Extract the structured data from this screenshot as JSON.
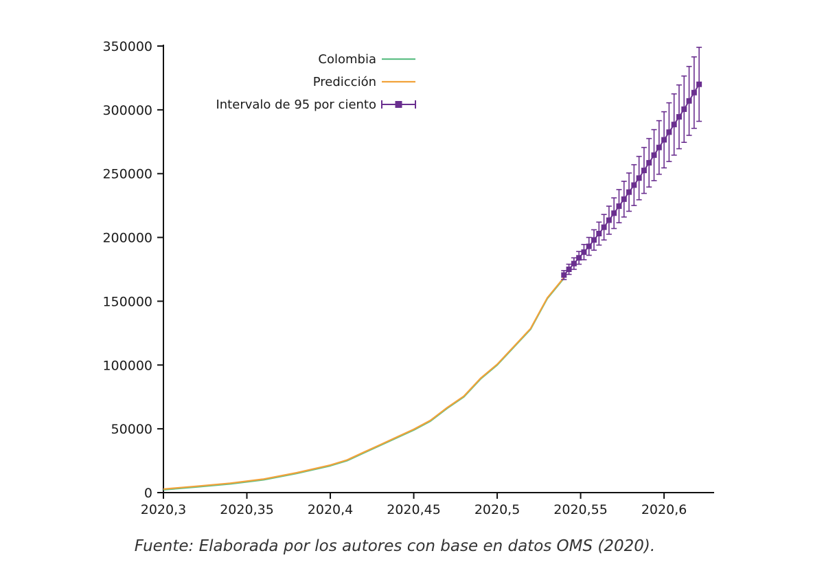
{
  "caption": "Fuente: Elaborada por los autores con base en datos OMS (2020).",
  "colors": {
    "colombia": "#5fbf86",
    "prediccion": "#f2a23a",
    "intervalo": "#6a2f8f",
    "axis": "#111111"
  },
  "chart_data": {
    "type": "line",
    "title": "",
    "xlabel": "",
    "ylabel": "",
    "xlim": [
      2020.3,
      2020.63
    ],
    "ylim": [
      0,
      350000
    ],
    "x_ticks": [
      2020.3,
      2020.35,
      2020.4,
      2020.45,
      2020.5,
      2020.55,
      2020.6
    ],
    "x_tick_labels": [
      "2020,3",
      "2020,35",
      "2020,4",
      "2020,45",
      "2020,5",
      "2020,55",
      "2020,6"
    ],
    "y_ticks": [
      0,
      50000,
      100000,
      150000,
      200000,
      250000,
      300000,
      350000
    ],
    "y_tick_labels": [
      "0",
      "50000",
      "100000",
      "150000",
      "200000",
      "250000",
      "300000",
      "350000"
    ],
    "grid": false,
    "legend_position": "top-left",
    "series": [
      {
        "name": "Colombia",
        "x": [
          2020.3,
          2020.32,
          2020.34,
          2020.36,
          2020.38,
          2020.4,
          2020.41,
          2020.42,
          2020.43,
          2020.44,
          2020.45,
          2020.46,
          2020.47,
          2020.48,
          2020.49,
          2020.5,
          2020.51,
          2020.52,
          2020.525,
          2020.53,
          2020.54
        ],
        "y": [
          2200,
          4400,
          6800,
          10000,
          15000,
          21000,
          25000,
          31000,
          37000,
          43000,
          49000,
          56000,
          66000,
          75000,
          89000,
          100000,
          114000,
          128000,
          140000,
          152000,
          168000
        ]
      },
      {
        "name": "Predicción",
        "x": [
          2020.3,
          2020.32,
          2020.34,
          2020.36,
          2020.38,
          2020.4,
          2020.41,
          2020.42,
          2020.43,
          2020.44,
          2020.45,
          2020.46,
          2020.47,
          2020.48,
          2020.49,
          2020.5,
          2020.51,
          2020.52,
          2020.525,
          2020.53,
          2020.54
        ],
        "y": [
          2800,
          5000,
          7400,
          10600,
          15600,
          21600,
          25600,
          31600,
          37600,
          43600,
          49600,
          56600,
          66600,
          75600,
          89600,
          100600,
          114600,
          128600,
          140600,
          152600,
          168600
        ]
      },
      {
        "name": "Intervalo de 95 por ciento",
        "x": [
          2020.54,
          2020.543,
          2020.546,
          2020.549,
          2020.552,
          2020.555,
          2020.558,
          2020.561,
          2020.564,
          2020.567,
          2020.57,
          2020.573,
          2020.576,
          2020.579,
          2020.582,
          2020.585,
          2020.588,
          2020.591,
          2020.594,
          2020.597,
          2020.6,
          2020.603,
          2020.606,
          2020.609,
          2020.612,
          2020.615,
          2020.618,
          2020.621
        ],
        "y": [
          170500,
          175000,
          179500,
          184000,
          188500,
          193000,
          198000,
          203000,
          208000,
          213500,
          219000,
          224500,
          230000,
          235500,
          241000,
          246500,
          252500,
          258500,
          264500,
          270500,
          276500,
          282500,
          288500,
          294500,
          300500,
          307000,
          313500,
          320000
        ],
        "y_low": [
          167000,
          171000,
          175000,
          179000,
          182500,
          186000,
          190000,
          194000,
          198000,
          202500,
          207000,
          211500,
          216000,
          220500,
          225000,
          229500,
          234500,
          239500,
          244500,
          249500,
          254500,
          259500,
          264500,
          269500,
          274500,
          280000,
          285500,
          291000
        ],
        "y_high": [
          174000,
          179000,
          184000,
          189000,
          194500,
          200000,
          206000,
          212000,
          218000,
          224500,
          231000,
          237500,
          244000,
          250500,
          257000,
          263500,
          270500,
          277500,
          284500,
          291500,
          298500,
          305500,
          312500,
          319500,
          326500,
          334000,
          341500,
          349000
        ]
      }
    ]
  }
}
